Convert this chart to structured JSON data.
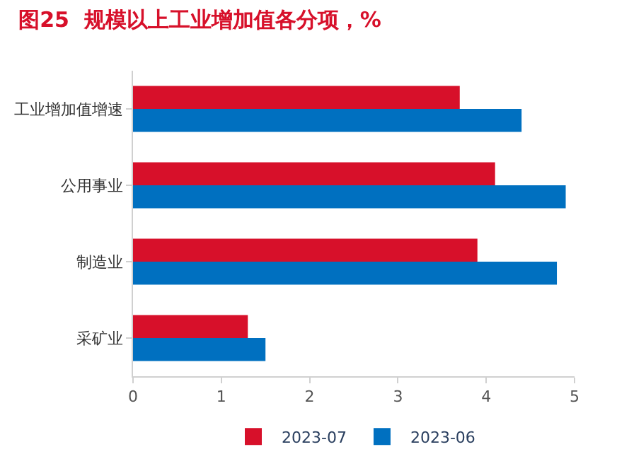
{
  "chart_data": {
    "type": "bar",
    "orientation": "horizontal",
    "title": "图25  规模以上工业增加值各分项，%",
    "categories": [
      "工业增加值增速",
      "公用事业",
      "制造业",
      "采矿业"
    ],
    "series": [
      {
        "name": "2023-07",
        "color": "#d7102a",
        "values": [
          3.7,
          4.1,
          3.9,
          1.3
        ]
      },
      {
        "name": "2023-06",
        "color": "#0070c0",
        "values": [
          4.4,
          4.9,
          4.8,
          1.5
        ]
      }
    ],
    "xlim": [
      0,
      5
    ],
    "xticks": [
      0,
      1,
      2,
      3,
      4,
      5
    ],
    "legend": "bottom"
  }
}
